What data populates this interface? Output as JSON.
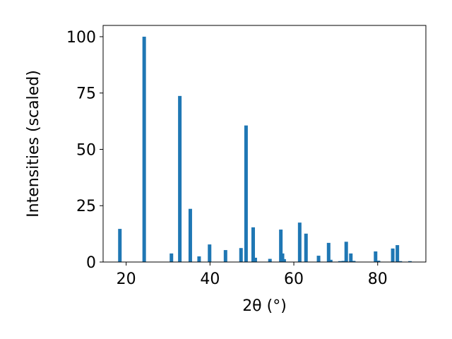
{
  "chart_data": {
    "type": "bar",
    "xlabel": "2θ (°)",
    "ylabel": "Intensities (scaled)",
    "xlim": [
      14.5,
      91.5
    ],
    "ylim": [
      0,
      105
    ],
    "x_ticks": [
      20,
      40,
      60,
      80
    ],
    "y_ticks": [
      0,
      25,
      50,
      75,
      100
    ],
    "grid": false,
    "bar_color": "#1f77b4",
    "points": [
      {
        "x": 18.5,
        "y": 14.7
      },
      {
        "x": 24.3,
        "y": 100
      },
      {
        "x": 30.8,
        "y": 3.8
      },
      {
        "x": 32.8,
        "y": 73.7
      },
      {
        "x": 35.3,
        "y": 23.6
      },
      {
        "x": 37.4,
        "y": 2.5
      },
      {
        "x": 39.9,
        "y": 7.8
      },
      {
        "x": 43.7,
        "y": 5.3
      },
      {
        "x": 47.4,
        "y": 6.2
      },
      {
        "x": 48.6,
        "y": 60.6
      },
      {
        "x": 50.3,
        "y": 15.4
      },
      {
        "x": 50.8,
        "y": 1.9
      },
      {
        "x": 54.3,
        "y": 1.4
      },
      {
        "x": 56.9,
        "y": 14.4
      },
      {
        "x": 57.3,
        "y": 3.8
      },
      {
        "x": 57.7,
        "y": 1.3
      },
      {
        "x": 61.4,
        "y": 17.5
      },
      {
        "x": 62.9,
        "y": 12.6
      },
      {
        "x": 65.9,
        "y": 2.8
      },
      {
        "x": 68.3,
        "y": 8.5
      },
      {
        "x": 68.8,
        "y": 1.0
      },
      {
        "x": 71.0,
        "y": 0.4
      },
      {
        "x": 71.8,
        "y": 0.5
      },
      {
        "x": 72.5,
        "y": 9.0
      },
      {
        "x": 73.6,
        "y": 3.8
      },
      {
        "x": 74.3,
        "y": 0.5
      },
      {
        "x": 79.5,
        "y": 4.7
      },
      {
        "x": 80.2,
        "y": 0.6
      },
      {
        "x": 83.6,
        "y": 6.0
      },
      {
        "x": 84.7,
        "y": 7.5
      },
      {
        "x": 85.4,
        "y": 0.4
      },
      {
        "x": 87.7,
        "y": 0.4
      }
    ]
  }
}
